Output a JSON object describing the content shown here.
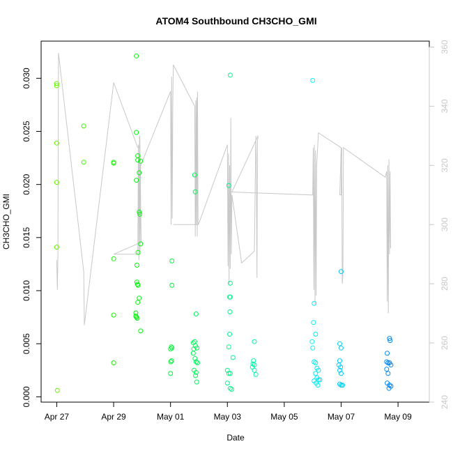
{
  "chart_data": {
    "type": "scatter",
    "title": "ATOM4 Southbound CH3CHO_GMI",
    "xlabel": "Date",
    "ylabel": "CH3CHO_GMI",
    "x_tick_labels": [
      "Apr 27",
      "Apr 29",
      "May 01",
      "May 03",
      "May 05",
      "May 07",
      "May 09"
    ],
    "x_ticks_day": [
      0,
      2,
      4,
      6,
      8,
      10,
      12
    ],
    "xlim_day": [
      -0.55,
      13.1
    ],
    "ylim": [
      -0.0005,
      0.0335
    ],
    "y_ticks": [
      0.0,
      0.005,
      0.01,
      0.015,
      0.02,
      0.025,
      0.03
    ],
    "y_tick_labels": [
      "0.000",
      "0.005",
      "0.010",
      "0.015",
      "0.020",
      "0.025",
      "0.030"
    ],
    "y2_lim": [
      240,
      362
    ],
    "y2_ticks": [
      240,
      260,
      280,
      300,
      320,
      340,
      360
    ],
    "y2_tick_labels": [
      "240",
      "260",
      "280",
      "300",
      "320",
      "340",
      "360"
    ],
    "grid": false,
    "colors": {
      "points": "hue gradient green to blue by time",
      "secondary_line": "#c8c8c8"
    },
    "series": [
      {
        "values": [
          [
            0.0,
            0.0295
          ],
          [
            0.0,
            0.0293
          ],
          [
            0.0,
            0.0239
          ],
          [
            0.0,
            0.0202
          ],
          [
            0.0,
            0.0141
          ],
          [
            0.02,
            0.0006
          ],
          [
            0.95,
            0.0255
          ],
          [
            0.95,
            0.0221
          ],
          [
            2.0,
            0.0221
          ],
          [
            2.0,
            0.022
          ],
          [
            2.0,
            0.013
          ],
          [
            2.0,
            0.0077
          ],
          [
            2.0,
            0.0032
          ],
          [
            2.8,
            0.0321
          ],
          [
            2.8,
            0.0249
          ],
          [
            2.85,
            0.0227
          ],
          [
            2.85,
            0.0223
          ],
          [
            2.8,
            0.0204
          ],
          [
            2.9,
            0.0211
          ],
          [
            2.9,
            0.0174
          ],
          [
            2.92,
            0.0172
          ],
          [
            2.82,
            0.0124
          ],
          [
            2.86,
            0.0136
          ],
          [
            2.82,
            0.0108
          ],
          [
            2.84,
            0.0106
          ],
          [
            2.86,
            0.0105
          ],
          [
            2.9,
            0.0093
          ],
          [
            2.85,
            0.0089
          ],
          [
            2.78,
            0.0079
          ],
          [
            2.78,
            0.0076
          ],
          [
            2.8,
            0.0075
          ],
          [
            2.83,
            0.0074
          ],
          [
            2.95,
            0.0144
          ],
          [
            2.95,
            0.0222
          ],
          [
            2.95,
            0.0062
          ],
          [
            4.05,
            0.0128
          ],
          [
            4.05,
            0.0105
          ],
          [
            4.0,
            0.0045
          ],
          [
            4.03,
            0.0047
          ],
          [
            4.05,
            0.0046
          ],
          [
            4.01,
            0.0033
          ],
          [
            4.04,
            0.0034
          ],
          [
            4.0,
            0.0022
          ],
          [
            4.85,
            0.0209
          ],
          [
            4.87,
            0.0193
          ],
          [
            4.9,
            0.0078
          ],
          [
            4.8,
            0.0051
          ],
          [
            4.85,
            0.0052
          ],
          [
            4.88,
            0.0048
          ],
          [
            4.82,
            0.0045
          ],
          [
            4.93,
            0.0046
          ],
          [
            4.8,
            0.0041
          ],
          [
            4.86,
            0.0036
          ],
          [
            4.9,
            0.0033
          ],
          [
            4.95,
            0.0032
          ],
          [
            4.83,
            0.0025
          ],
          [
            4.9,
            0.0023
          ],
          [
            4.88,
            0.002
          ],
          [
            4.92,
            0.0014
          ],
          [
            6.1,
            0.0303
          ],
          [
            6.05,
            0.0199
          ],
          [
            6.1,
            0.0107
          ],
          [
            6.08,
            0.0094
          ],
          [
            6.1,
            0.0094
          ],
          [
            6.09,
            0.008
          ],
          [
            6.08,
            0.0059
          ],
          [
            6.05,
            0.0047
          ],
          [
            6.0,
            0.0025
          ],
          [
            6.05,
            0.0022
          ],
          [
            6.1,
            0.0022
          ],
          [
            6.0,
            0.0013
          ],
          [
            6.1,
            0.0008
          ],
          [
            6.15,
            0.0007
          ],
          [
            6.2,
            0.0037
          ],
          [
            6.95,
            0.0052
          ],
          [
            6.92,
            0.0034
          ],
          [
            6.9,
            0.0031
          ],
          [
            6.95,
            0.003
          ],
          [
            6.88,
            0.0028
          ],
          [
            6.95,
            0.0025
          ],
          [
            7.0,
            0.0021
          ],
          [
            9.0,
            0.0298
          ],
          [
            9.05,
            0.0088
          ],
          [
            9.03,
            0.007
          ],
          [
            9.1,
            0.0059
          ],
          [
            8.98,
            0.0052
          ],
          [
            9.0,
            0.0046
          ],
          [
            9.05,
            0.0033
          ],
          [
            9.1,
            0.0032
          ],
          [
            9.15,
            0.0027
          ],
          [
            9.2,
            0.0025
          ],
          [
            9.1,
            0.0022
          ],
          [
            9.15,
            0.0018
          ],
          [
            9.2,
            0.0016
          ],
          [
            9.05,
            0.0015
          ],
          [
            9.12,
            0.0013
          ],
          [
            9.18,
            0.0011
          ],
          [
            9.25,
            0.0016
          ],
          [
            10.0,
            0.0118
          ],
          [
            9.95,
            0.005
          ],
          [
            10.0,
            0.0046
          ],
          [
            9.95,
            0.0034
          ],
          [
            9.92,
            0.003
          ],
          [
            9.98,
            0.0028
          ],
          [
            9.95,
            0.0025
          ],
          [
            10.0,
            0.0022
          ],
          [
            9.95,
            0.0012
          ],
          [
            10.0,
            0.0011
          ],
          [
            10.05,
            0.0011
          ],
          [
            11.7,
            0.0055
          ],
          [
            11.72,
            0.0053
          ],
          [
            11.62,
            0.0041
          ],
          [
            11.6,
            0.0033
          ],
          [
            11.65,
            0.0032
          ],
          [
            11.7,
            0.0032
          ],
          [
            11.75,
            0.003
          ],
          [
            11.6,
            0.0026
          ],
          [
            11.65,
            0.0022
          ],
          [
            11.62,
            0.0013
          ],
          [
            11.7,
            0.0011
          ],
          [
            11.75,
            0.001
          ],
          [
            11.68,
            0.0008
          ]
        ]
      },
      {
        "axis": "right",
        "values": [
          [
            0.0,
            288
          ],
          [
            0.02,
            278
          ],
          [
            0.04,
            289
          ],
          [
            0.06,
            358
          ],
          [
            0.95,
            284
          ],
          [
            0.97,
            266
          ],
          [
            2.0,
            348
          ],
          [
            2.85,
            326
          ],
          [
            2.9,
            326
          ],
          [
            2.92,
            330
          ],
          [
            2.97,
            294
          ],
          [
            2.0,
            290
          ],
          [
            2.85,
            290
          ],
          [
            2.87,
            327
          ],
          [
            2.89,
            288
          ],
          [
            2.91,
            330
          ],
          [
            2.93,
            290
          ],
          [
            2.95,
            320
          ],
          [
            4.0,
            345
          ],
          [
            4.02,
            300
          ],
          [
            4.04,
            350
          ],
          [
            4.06,
            302
          ],
          [
            4.08,
            340
          ],
          [
            4.1,
            354
          ],
          [
            4.85,
            340
          ],
          [
            4.87,
            296
          ],
          [
            4.89,
            342
          ],
          [
            4.9,
            300
          ],
          [
            4.92,
            343
          ],
          [
            4.94,
            296
          ],
          [
            4.95,
            345
          ],
          [
            4.97,
            300
          ],
          [
            4.1,
            300
          ],
          [
            4.98,
            300
          ],
          [
            6.0,
            327
          ],
          [
            6.02,
            286
          ],
          [
            6.04,
            324
          ],
          [
            6.06,
            280
          ],
          [
            6.08,
            320
          ],
          [
            6.1,
            285
          ],
          [
            6.12,
            336
          ],
          [
            6.14,
            290
          ],
          [
            6.16,
            310
          ],
          [
            6.5,
            287
          ],
          [
            6.95,
            291
          ],
          [
            7.0,
            330
          ],
          [
            7.02,
            320
          ],
          [
            7.04,
            282
          ],
          [
            7.06,
            328
          ],
          [
            7.08,
            330
          ],
          [
            6.16,
            311
          ],
          [
            9.0,
            310
          ],
          [
            9.02,
            326
          ],
          [
            9.04,
            278
          ],
          [
            9.06,
            327
          ],
          [
            9.08,
            273
          ],
          [
            9.1,
            325
          ],
          [
            9.12,
            276
          ],
          [
            9.14,
            320
          ],
          [
            9.2,
            331
          ],
          [
            10.0,
            326
          ],
          [
            9.95,
            310
          ],
          [
            10.0,
            310
          ],
          [
            10.02,
            326
          ],
          [
            10.04,
            280
          ],
          [
            10.06,
            283
          ],
          [
            10.08,
            326
          ],
          [
            11.55,
            316
          ],
          [
            11.6,
            318
          ],
          [
            11.62,
            274
          ],
          [
            11.64,
            320
          ],
          [
            11.66,
            270
          ],
          [
            11.68,
            322
          ],
          [
            11.7,
            290
          ],
          [
            11.72,
            318
          ],
          [
            11.74,
            292
          ]
        ]
      }
    ]
  }
}
